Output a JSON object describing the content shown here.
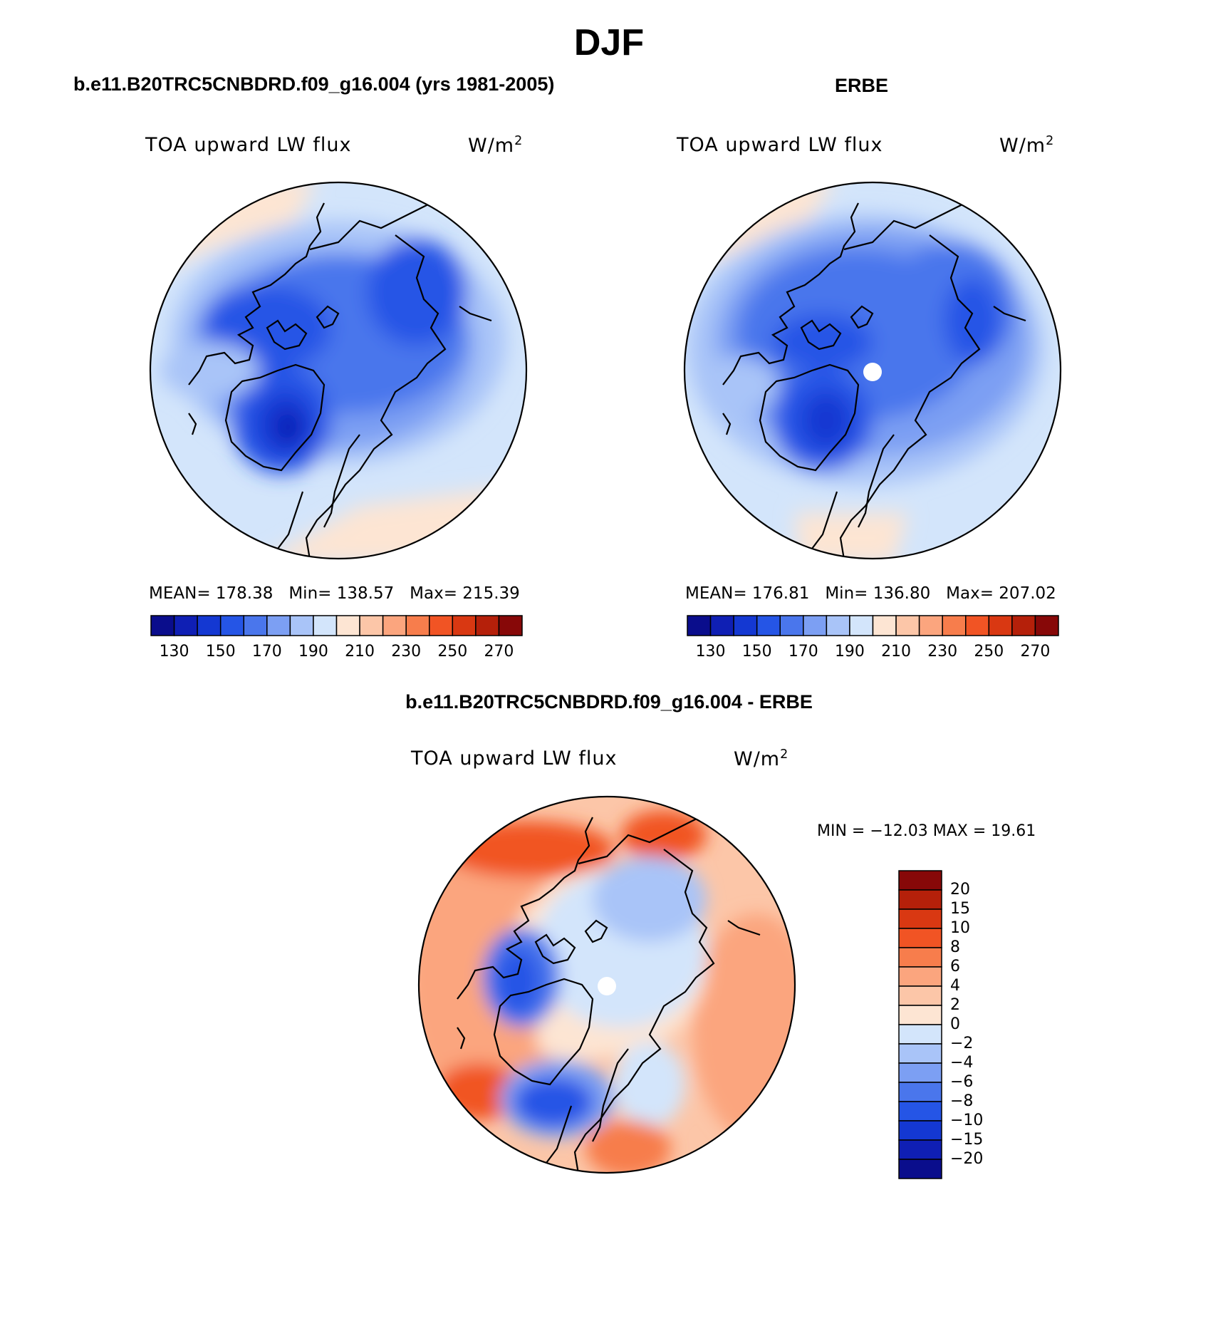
{
  "figure": {
    "title": "DJF",
    "panel_left_title": "b.e11.B20TRC5CNBDRD.f09_g16.004 (yrs 1981-2005)",
    "panel_right_title": "ERBE",
    "panel_diff_title": "b.e11.B20TRC5CNBDRD.f09_g16.004 - ERBE"
  },
  "panels": {
    "left": {
      "variable": "TOA upward LW flux",
      "units_base": "W/m",
      "units_exp": "2",
      "mean_label": "MEAN=",
      "mean": "178.38",
      "min_label": "Min=",
      "min": "138.57",
      "max_label": "Max=",
      "max": "215.39"
    },
    "right": {
      "variable": "TOA upward LW flux",
      "units_base": "W/m",
      "units_exp": "2",
      "mean_label": "MEAN=",
      "mean": "176.81",
      "min_label": "Min=",
      "min": "136.80",
      "max_label": "Max=",
      "max": "207.02"
    },
    "diff": {
      "variable": "TOA upward LW flux",
      "units_base": "W/m",
      "units_exp": "2",
      "minmax_text": "MIN = −12.03 MAX =   19.61"
    }
  },
  "colorbars": {
    "abs": {
      "tick_labels": [
        "130",
        "150",
        "170",
        "190",
        "210",
        "230",
        "250",
        "270"
      ],
      "colors": [
        "#0a0d8c",
        "#0f1fb4",
        "#1438d2",
        "#2555e6",
        "#4a76ec",
        "#7c9ff3",
        "#a9c4f8",
        "#d3e5fb",
        "#fde5d3",
        "#fcc6a8",
        "#fba57e",
        "#f77d4c",
        "#f15424",
        "#d93812",
        "#b5200a",
        "#870808"
      ]
    },
    "diff": {
      "labels": [
        "20",
        "15",
        "10",
        "8",
        "6",
        "4",
        "2",
        "0",
        "−2",
        "−4",
        "−6",
        "−8",
        "−10",
        "−15",
        "−20"
      ],
      "colors": [
        "#870808",
        "#b5200a",
        "#d93812",
        "#f15424",
        "#f77d4c",
        "#fba57e",
        "#fcc6a8",
        "#fde5d3",
        "#d3e5fb",
        "#a9c4f8",
        "#7c9ff3",
        "#4a76ec",
        "#2555e6",
        "#1438d2",
        "#0f1fb4",
        "#0a0d8c"
      ]
    }
  }
}
